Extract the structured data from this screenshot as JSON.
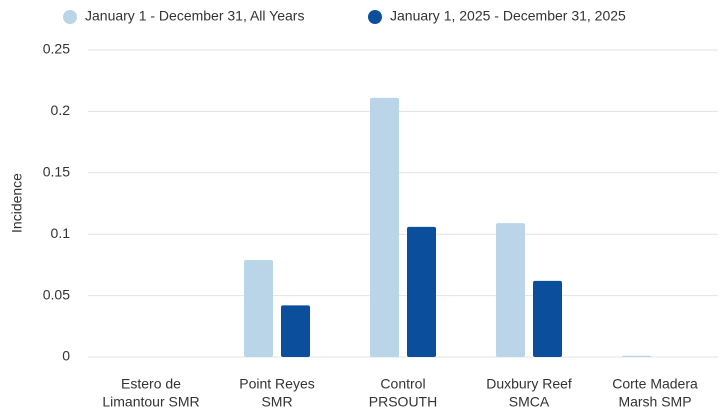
{
  "chart_data": {
    "type": "bar",
    "categories": [
      [
        "Estero de",
        "Limantour SMR"
      ],
      [
        "Point Reyes",
        "SMR"
      ],
      [
        "Control",
        "PRSOUTH"
      ],
      [
        "Duxbury Reef",
        "SMCA"
      ],
      [
        "Corte Madera",
        "Marsh SMP"
      ]
    ],
    "series": [
      {
        "name": "January 1 - December 31, All Years",
        "color": "#b9d5e7",
        "values": [
          0,
          0.079,
          0.211,
          0.109,
          0.001
        ]
      },
      {
        "name": "January 1, 2025 - December 31, 2025",
        "color": "#0b4f9c",
        "values": [
          0,
          0.042,
          0.106,
          0.062,
          0
        ]
      }
    ],
    "y_label": "Incidence",
    "ylim": [
      0,
      0.25
    ],
    "yticks": [
      0,
      0.05,
      0.1,
      0.15,
      0.2,
      0.25
    ],
    "grid": true,
    "legend": "top"
  }
}
